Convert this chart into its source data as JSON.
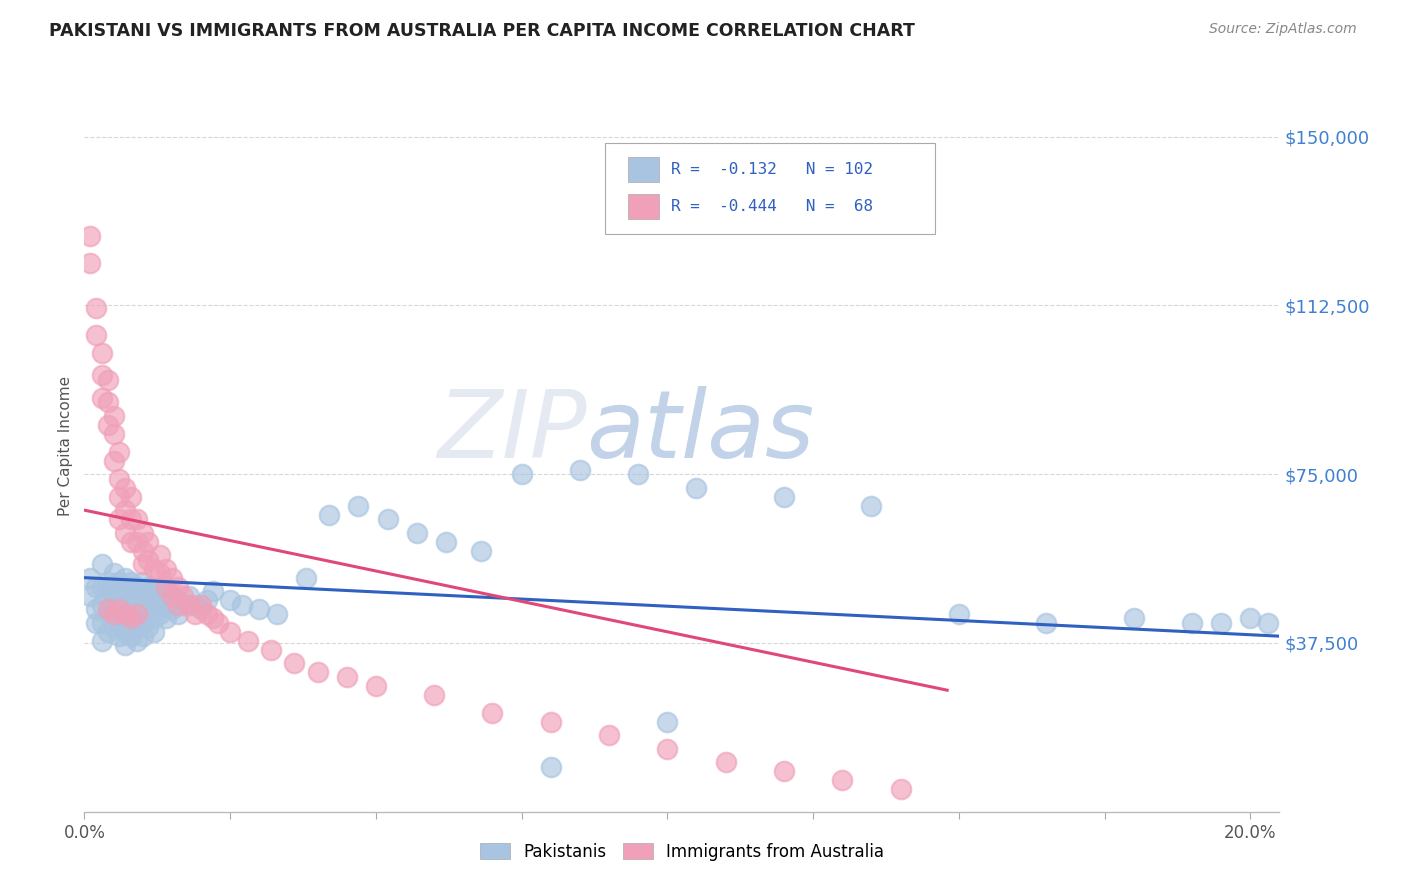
{
  "title": "PAKISTANI VS IMMIGRANTS FROM AUSTRALIA PER CAPITA INCOME CORRELATION CHART",
  "source": "Source: ZipAtlas.com",
  "ylabel": "Per Capita Income",
  "ytick_labels": [
    "$37,500",
    "$75,000",
    "$112,500",
    "$150,000"
  ],
  "ytick_values": [
    37500,
    75000,
    112500,
    150000
  ],
  "ymin": 0,
  "ymax": 162500,
  "xmin": 0.0,
  "xmax": 0.205,
  "blue_color": "#a8c4e0",
  "pink_color": "#f0a0b8",
  "blue_line_color": "#3060c0",
  "pink_line_color": "#e04878",
  "title_color": "#222222",
  "right_label_color": "#4080d0",
  "watermark_gray": "#d0d8e8",
  "watermark_blue": "#90b0d8",
  "background_color": "#ffffff",
  "grid_color": "#d8d8d8",
  "blue_scatter_x": [
    0.001,
    0.001,
    0.002,
    0.002,
    0.002,
    0.003,
    0.003,
    0.003,
    0.003,
    0.003,
    0.004,
    0.004,
    0.004,
    0.004,
    0.004,
    0.005,
    0.005,
    0.005,
    0.005,
    0.005,
    0.005,
    0.005,
    0.005,
    0.006,
    0.006,
    0.006,
    0.006,
    0.006,
    0.006,
    0.007,
    0.007,
    0.007,
    0.007,
    0.007,
    0.007,
    0.007,
    0.008,
    0.008,
    0.008,
    0.008,
    0.008,
    0.008,
    0.009,
    0.009,
    0.009,
    0.009,
    0.009,
    0.01,
    0.01,
    0.01,
    0.01,
    0.01,
    0.011,
    0.011,
    0.011,
    0.011,
    0.012,
    0.012,
    0.012,
    0.012,
    0.013,
    0.013,
    0.013,
    0.014,
    0.014,
    0.014,
    0.015,
    0.015,
    0.016,
    0.016,
    0.017,
    0.018,
    0.019,
    0.02,
    0.021,
    0.022,
    0.025,
    0.027,
    0.03,
    0.033,
    0.038,
    0.042,
    0.047,
    0.052,
    0.057,
    0.062,
    0.068,
    0.075,
    0.085,
    0.095,
    0.105,
    0.12,
    0.135,
    0.15,
    0.165,
    0.18,
    0.19,
    0.195,
    0.2,
    0.203,
    0.08,
    0.1
  ],
  "blue_scatter_y": [
    48000,
    52000,
    45000,
    50000,
    42000,
    55000,
    50000,
    46000,
    42000,
    38000,
    51000,
    47000,
    44000,
    50000,
    40000,
    53000,
    50000,
    47000,
    44000,
    41000,
    50000,
    47000,
    44000,
    51000,
    48000,
    45000,
    42000,
    39000,
    50000,
    52000,
    49000,
    46000,
    43000,
    40000,
    37000,
    48000,
    51000,
    48000,
    45000,
    42000,
    39000,
    50000,
    50000,
    47000,
    44000,
    41000,
    38000,
    51000,
    48000,
    45000,
    42000,
    39000,
    50000,
    47000,
    44000,
    41000,
    49000,
    46000,
    43000,
    40000,
    50000,
    47000,
    44000,
    49000,
    46000,
    43000,
    48000,
    45000,
    47000,
    44000,
    46000,
    48000,
    46000,
    45000,
    47000,
    49000,
    47000,
    46000,
    45000,
    44000,
    52000,
    66000,
    68000,
    65000,
    62000,
    60000,
    58000,
    75000,
    76000,
    75000,
    72000,
    70000,
    68000,
    44000,
    42000,
    43000,
    42000,
    42000,
    43000,
    42000,
    10000,
    20000
  ],
  "pink_scatter_x": [
    0.001,
    0.001,
    0.002,
    0.002,
    0.003,
    0.003,
    0.003,
    0.004,
    0.004,
    0.004,
    0.005,
    0.005,
    0.005,
    0.006,
    0.006,
    0.006,
    0.006,
    0.007,
    0.007,
    0.007,
    0.008,
    0.008,
    0.008,
    0.009,
    0.009,
    0.01,
    0.01,
    0.01,
    0.011,
    0.011,
    0.012,
    0.013,
    0.013,
    0.014,
    0.014,
    0.015,
    0.015,
    0.016,
    0.016,
    0.017,
    0.018,
    0.019,
    0.02,
    0.021,
    0.022,
    0.023,
    0.025,
    0.028,
    0.032,
    0.036,
    0.04,
    0.045,
    0.05,
    0.06,
    0.07,
    0.08,
    0.09,
    0.1,
    0.11,
    0.12,
    0.13,
    0.14,
    0.004,
    0.005,
    0.006,
    0.007,
    0.008,
    0.009
  ],
  "pink_scatter_y": [
    128000,
    122000,
    112000,
    106000,
    102000,
    97000,
    92000,
    96000,
    91000,
    86000,
    84000,
    88000,
    78000,
    80000,
    74000,
    70000,
    65000,
    72000,
    67000,
    62000,
    70000,
    65000,
    60000,
    65000,
    60000,
    62000,
    58000,
    55000,
    60000,
    56000,
    54000,
    53000,
    57000,
    54000,
    50000,
    52000,
    48000,
    50000,
    46000,
    48000,
    46000,
    44000,
    46000,
    44000,
    43000,
    42000,
    40000,
    38000,
    36000,
    33000,
    31000,
    30000,
    28000,
    26000,
    22000,
    20000,
    17000,
    14000,
    11000,
    9000,
    7000,
    5000,
    45000,
    44000,
    45000,
    44000,
    43000,
    44000
  ],
  "blue_trend_x": [
    0.0,
    0.205
  ],
  "blue_trend_y": [
    52000,
    39000
  ],
  "pink_trend_x": [
    0.0,
    0.148
  ],
  "pink_trend_y": [
    67000,
    27000
  ]
}
